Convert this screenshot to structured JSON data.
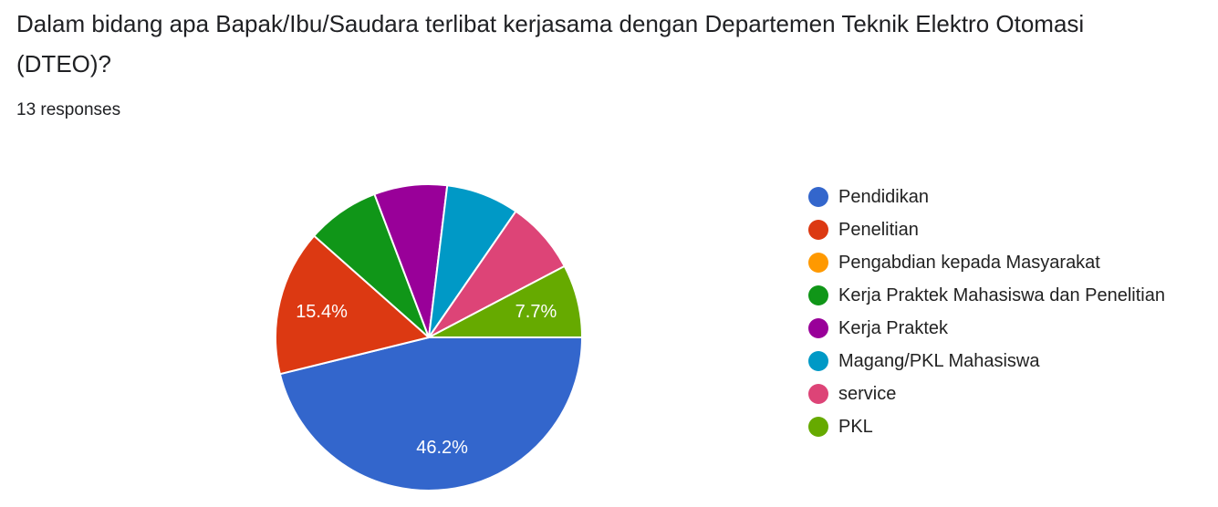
{
  "title": "Dalam bidang apa Bapak/Ibu/Saudara terlibat kerjasama dengan Departemen Teknik Elektro Otomasi (DTEO)?",
  "responses": "13 responses",
  "chart_data": {
    "type": "pie",
    "categories": [
      "Pendidikan",
      "Penelitian",
      "Pengabdian kepada Masyarakat",
      "Kerja Praktek Mahasiswa dan Penelitian",
      "Kerja Praktek",
      "Magang/PKL Mahasiswa",
      "service",
      "PKL"
    ],
    "values": [
      6,
      2,
      0,
      1,
      1,
      1,
      1,
      1
    ],
    "colors": [
      "#3366cc",
      "#dc3912",
      "#ff9900",
      "#109618",
      "#990099",
      "#0099c6",
      "#dd4477",
      "#66aa00"
    ],
    "data_labels": [
      "46.2%",
      "15.4%",
      "",
      "",
      "",
      "",
      "",
      "7.7%"
    ],
    "legend": "right"
  }
}
